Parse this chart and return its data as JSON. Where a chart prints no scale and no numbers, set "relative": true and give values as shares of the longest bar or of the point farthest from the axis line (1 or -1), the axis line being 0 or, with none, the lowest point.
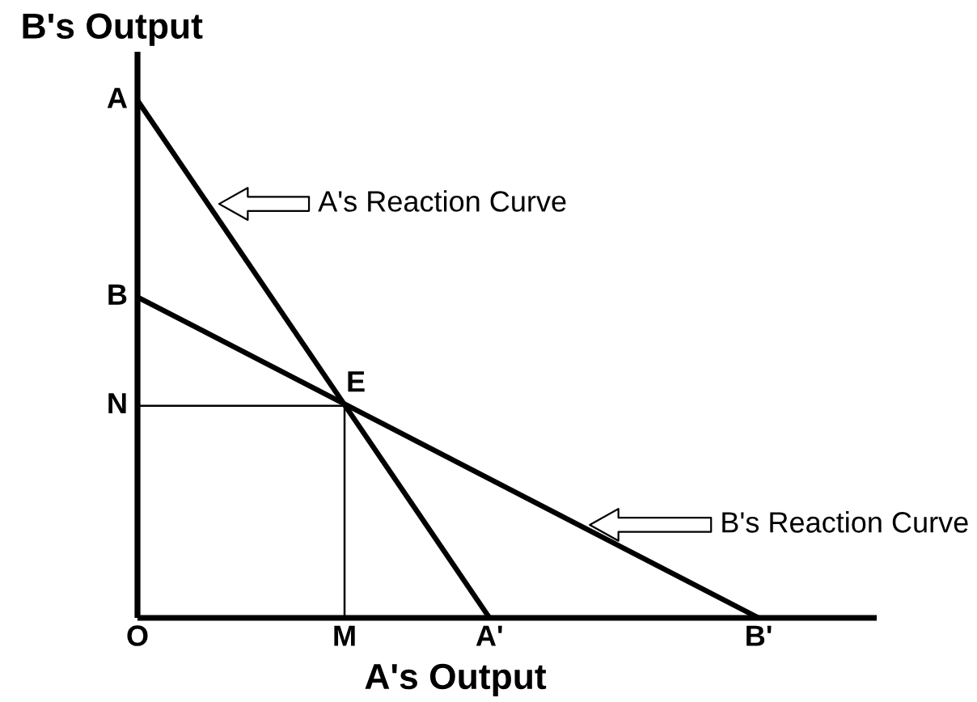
{
  "chart_data": {
    "type": "line",
    "relative": true,
    "xlabel": "A's Output",
    "ylabel": "B's Output",
    "legend": "right",
    "categories": [
      "O",
      null,
      null,
      null,
      null,
      null,
      null,
      null,
      null,
      null,
      "M",
      null,
      null,
      null,
      null,
      null,
      null,
      "A'",
      null,
      null,
      null,
      null,
      null,
      null,
      null,
      null,
      null,
      null,
      null,
      null,
      "B'",
      null,
      null,
      null,
      null,
      null
    ],
    "series": [
      {
        "name": "A's Reaction Curve",
        "color": "#000000",
        "x": [
          "O",
          "A'"
        ],
        "values": [
          1,
          0
        ]
      },
      {
        "name": "B's Reaction Curve",
        "color": "#000000",
        "x": [
          "O",
          "B'"
        ],
        "values": [
          0.62,
          0
        ]
      },
      {
        "type": "step",
        "color": "#000000",
        "x": [
          "O",
          "M"
        ],
        "values": [
          0.41,
          0
        ]
      }
    ],
    "annotations": [
      {
        "text": "A",
        "x": "O",
        "y": 1
      },
      {
        "text": "B",
        "x": "O",
        "y": 0.62
      },
      {
        "text": "N",
        "x": "O",
        "y": 0.41
      },
      {
        "text": "E",
        "x": "M",
        "y": 0.41
      }
    ]
  }
}
